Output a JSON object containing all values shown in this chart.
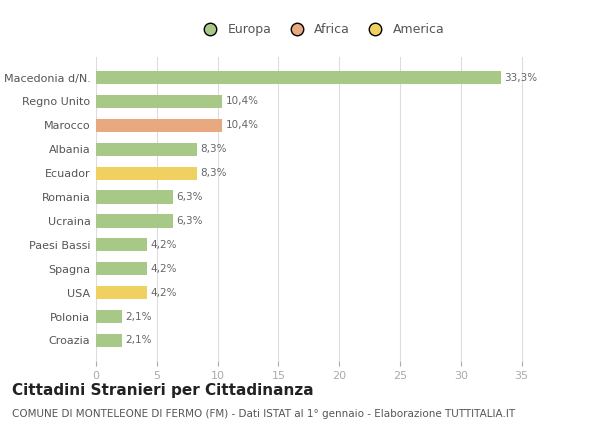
{
  "categories": [
    "Croazia",
    "Polonia",
    "USA",
    "Spagna",
    "Paesi Bassi",
    "Ucraina",
    "Romania",
    "Ecuador",
    "Albania",
    "Marocco",
    "Regno Unito",
    "Macedonia d/N."
  ],
  "values": [
    2.1,
    2.1,
    4.2,
    4.2,
    4.2,
    6.3,
    6.3,
    8.3,
    8.3,
    10.4,
    10.4,
    33.3
  ],
  "colors": [
    "#a8c888",
    "#a8c888",
    "#f0d060",
    "#a8c888",
    "#a8c888",
    "#a8c888",
    "#a8c888",
    "#f0d060",
    "#a8c888",
    "#e8a880",
    "#a8c888",
    "#a8c888"
  ],
  "labels": [
    "2,1%",
    "2,1%",
    "4,2%",
    "4,2%",
    "4,2%",
    "6,3%",
    "6,3%",
    "8,3%",
    "8,3%",
    "10,4%",
    "10,4%",
    "33,3%"
  ],
  "legend": [
    {
      "label": "Europa",
      "color": "#a8c888"
    },
    {
      "label": "Africa",
      "color": "#e8a880"
    },
    {
      "label": "America",
      "color": "#f0d060"
    }
  ],
  "title": "Cittadini Stranieri per Cittadinanza",
  "subtitle": "COMUNE DI MONTELEONE DI FERMO (FM) - Dati ISTAT al 1° gennaio - Elaborazione TUTTITALIA.IT",
  "xlim": [
    0,
    37
  ],
  "xticks": [
    0,
    5,
    10,
    15,
    20,
    25,
    30,
    35
  ],
  "background_color": "#ffffff",
  "grid_color": "#dddddd",
  "bar_height": 0.55,
  "title_fontsize": 11,
  "subtitle_fontsize": 7.5,
  "label_fontsize": 7.5,
  "tick_fontsize": 8,
  "legend_fontsize": 9
}
